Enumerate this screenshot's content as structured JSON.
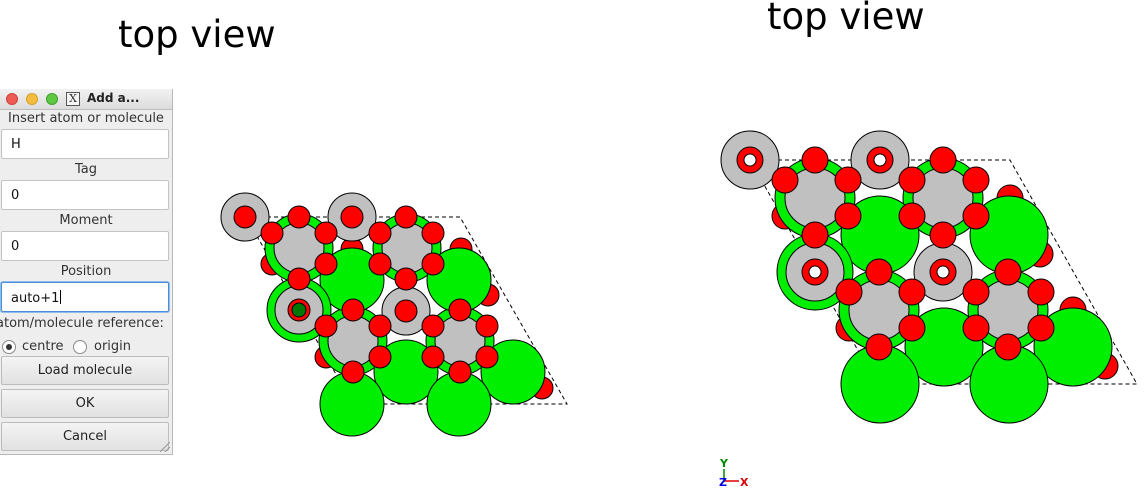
{
  "captions": {
    "left": "top view",
    "right": "top view"
  },
  "dialog": {
    "title": "Add a...",
    "insert_label": "Insert atom or molecule",
    "insert_value": "H",
    "tag_label": "Tag",
    "tag_value": "0",
    "moment_label": "Moment",
    "moment_value": "0",
    "position_label": "Position",
    "position_value": "auto+1",
    "reference_label": "atom/molecule reference:",
    "radio_centre": "centre",
    "radio_origin": "origin",
    "selected_reference": "centre",
    "load_button": "Load molecule",
    "ok_button": "OK",
    "cancel_button": "Cancel"
  },
  "axes": {
    "y_label": "Y",
    "z_label": "Z",
    "x_label": "X"
  },
  "colors": {
    "oxygen": "#ff0000",
    "metal": "#00ee00",
    "gray_atom": "#c0c0c0",
    "focus": "#4a90d9"
  }
}
